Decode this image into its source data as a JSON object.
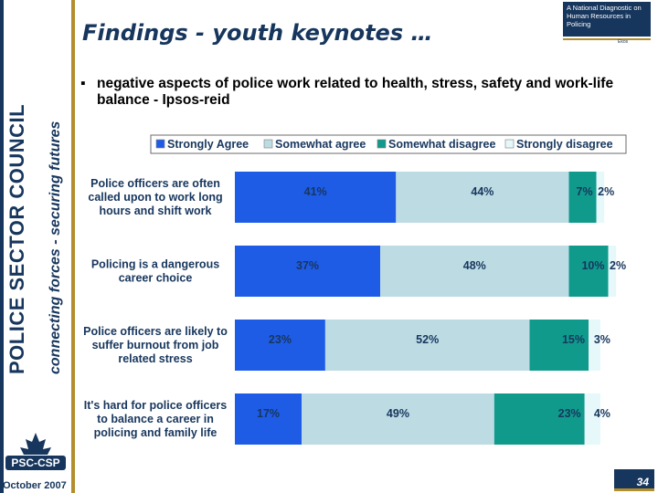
{
  "sidebar": {
    "org_name": "POLICE SECTOR COUNCIL",
    "tagline": "connecting forces - securing futures",
    "logo_text": "PSC-CSP",
    "date": "October 2007"
  },
  "header": {
    "title": "Findings - youth keynotes …",
    "corner_text": "A National Diagnostic on Human Resources in Policing",
    "corner_small": "Ekos"
  },
  "bullet": {
    "marker": "▪",
    "text": "negative aspects of police work related to health, stress, safety and work-life balance - Ipsos-reid"
  },
  "colors": {
    "navy": "#17365d",
    "gold": "#b38e2c",
    "strongly_agree": "#1e5ce6",
    "somewhat_agree": "#bcdbe3",
    "somewhat_disagree": "#0f9a8c",
    "strongly_disagree": "#e6f8fa"
  },
  "chart_data": {
    "type": "bar",
    "orientation": "horizontal",
    "stacked": true,
    "legend_position": "top",
    "grid": false,
    "xlim": [
      0,
      100
    ],
    "categories": [
      "Police officers are often called upon to work long hours and shift work",
      "Policing is a dangerous career choice",
      "Police officers are likely to suffer burnout from job related stress",
      "It's hard for police officers to balance a career in policing and family life"
    ],
    "series": [
      {
        "name": "Strongly Agree",
        "color": "#1e5ce6",
        "values": [
          41,
          37,
          23,
          17
        ]
      },
      {
        "name": "Somewhat agree",
        "color": "#bcdbe3",
        "values": [
          44,
          48,
          52,
          49
        ]
      },
      {
        "name": "Somewhat disagree",
        "color": "#0f9a8c",
        "values": [
          7,
          10,
          15,
          23
        ]
      },
      {
        "name": "Strongly disagree",
        "color": "#e6f8fa",
        "values": [
          2,
          2,
          3,
          4
        ]
      }
    ]
  },
  "footer": {
    "slide_number": "34"
  }
}
